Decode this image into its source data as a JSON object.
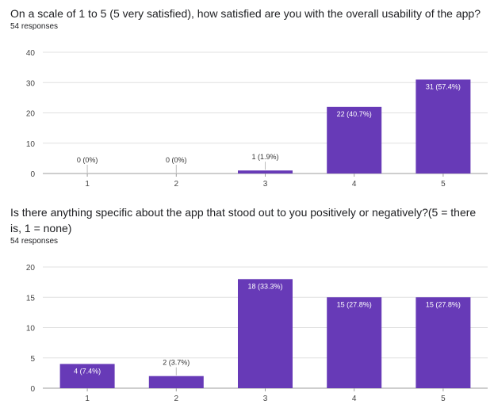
{
  "charts": [
    {
      "question": "On a scale of 1 to 5 (5 very satisfied), how satisfied are you with the overall usability of the app?",
      "responses": "54 responses"
    },
    {
      "question": "Is there anything specific about the app that stood out to you positively or negatively?(5 = there is, 1 = none)",
      "responses": "54 responses"
    }
  ],
  "chart_data": [
    {
      "type": "bar",
      "categories": [
        "1",
        "2",
        "3",
        "4",
        "5"
      ],
      "values": [
        0,
        0,
        1,
        22,
        31
      ],
      "data_labels": [
        "0 (0%)",
        "0 (0%)",
        "1 (1.9%)",
        "22 (40.7%)",
        "31 (57.4%)"
      ],
      "ylim": [
        0,
        40
      ],
      "yticks": [
        0,
        10,
        20,
        30,
        40
      ],
      "bar_color": "#673ab7",
      "grid": true
    },
    {
      "type": "bar",
      "categories": [
        "1",
        "2",
        "3",
        "4",
        "5"
      ],
      "values": [
        4,
        2,
        18,
        15,
        15
      ],
      "data_labels": [
        "4 (7.4%)",
        "2 (3.7%)",
        "18 (33.3%)",
        "15 (27.8%)",
        "15 (27.8%)"
      ],
      "ylim": [
        0,
        20
      ],
      "yticks": [
        0,
        5,
        10,
        15,
        20
      ],
      "bar_color": "#673ab7",
      "grid": true
    }
  ]
}
